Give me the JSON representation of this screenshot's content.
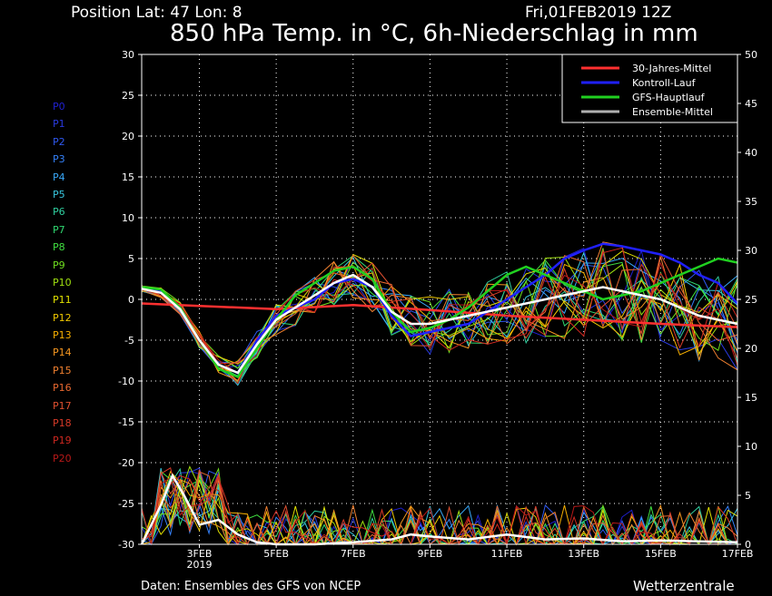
{
  "header": {
    "position": "Position   Lat: 47 Lon: 8",
    "date": "Fri,01FEB2019 12Z",
    "title": "850 hPa Temp. in °C, 6h-Niederschlag in mm"
  },
  "footer": {
    "source": "Daten: Ensembles des GFS von NCEP",
    "brand": "Wetterzentrale"
  },
  "members": [
    {
      "label": "P0",
      "color": "#2020d0"
    },
    {
      "label": "P1",
      "color": "#2a3ae0"
    },
    {
      "label": "P2",
      "color": "#2f58f0"
    },
    {
      "label": "P3",
      "color": "#3480f8"
    },
    {
      "label": "P4",
      "color": "#38a8f8"
    },
    {
      "label": "P5",
      "color": "#38c8e0"
    },
    {
      "label": "P6",
      "color": "#30d0a0"
    },
    {
      "label": "P7",
      "color": "#30d870"
    },
    {
      "label": "P8",
      "color": "#40e040"
    },
    {
      "label": "P9",
      "color": "#70e020"
    },
    {
      "label": "P10",
      "color": "#a0e010"
    },
    {
      "label": "P11",
      "color": "#e0e000"
    },
    {
      "label": "P12",
      "color": "#f0c800"
    },
    {
      "label": "P13",
      "color": "#f8b000"
    },
    {
      "label": "P14",
      "color": "#f89820"
    },
    {
      "label": "P15",
      "color": "#f08030"
    },
    {
      "label": "P16",
      "color": "#e86830"
    },
    {
      "label": "P17",
      "color": "#e05030"
    },
    {
      "label": "P18",
      "color": "#d83a28"
    },
    {
      "label": "P19",
      "color": "#d02820"
    },
    {
      "label": "P20",
      "color": "#b81818"
    }
  ],
  "chart_data": {
    "type": "line",
    "x_unit": "days",
    "x_start": "2019-02-01 12Z",
    "xlim": [
      1.5,
      17.0
    ],
    "x_ticks": [
      {
        "day": 3,
        "label": "3FEB",
        "sublabel": "2019"
      },
      {
        "day": 5,
        "label": "5FEB"
      },
      {
        "day": 7,
        "label": "7FEB"
      },
      {
        "day": 9,
        "label": "9FEB"
      },
      {
        "day": 11,
        "label": "11FEB"
      },
      {
        "day": 13,
        "label": "13FEB"
      },
      {
        "day": 15,
        "label": "15FEB"
      },
      {
        "day": 17,
        "label": "17FEB"
      }
    ],
    "y_left": {
      "unit": "°C",
      "lim": [
        -30,
        30
      ],
      "ticks": [
        30,
        25,
        20,
        15,
        10,
        5,
        0,
        -5,
        -10,
        -15,
        -20,
        -25,
        -30
      ]
    },
    "y_right": {
      "unit": "mm",
      "lim": [
        0,
        50
      ],
      "ticks": [
        50,
        45,
        40,
        35,
        30,
        25,
        20,
        15,
        10,
        5,
        0
      ]
    },
    "legend": {
      "placement": "top-right",
      "entries": [
        {
          "name": "30-Jahres-Mittel",
          "color": "#ff3030"
        },
        {
          "name": "Kontroll-Lauf",
          "color": "#2020ff"
        },
        {
          "name": "GFS-Hauptlauf",
          "color": "#20d020"
        },
        {
          "name": "Ensemble-Mittel",
          "color": "#b0b0b0"
        }
      ]
    },
    "series": [
      {
        "name": "30-Jahres-Mittel",
        "color": "#ff3030",
        "axis": "left",
        "x": [
          1.5,
          3,
          5,
          7,
          9,
          11,
          13,
          15,
          17
        ],
        "y": [
          -0.5,
          -0.8,
          -1.2,
          -0.7,
          -1.3,
          -2.0,
          -2.5,
          -3.0,
          -3.4
        ]
      },
      {
        "name": "Kontroll-Lauf",
        "color": "#2020ff",
        "axis": "left",
        "x": [
          1.5,
          2,
          2.5,
          3,
          3.5,
          4,
          4.5,
          5,
          5.5,
          6,
          6.5,
          7,
          7.5,
          8,
          8.5,
          9,
          9.5,
          10,
          10.5,
          11,
          11.5,
          12,
          12.5,
          13,
          13.5,
          14,
          14.5,
          15,
          15.5,
          16,
          16.5,
          17
        ],
        "y": [
          1.5,
          1.0,
          -1.0,
          -5.0,
          -8.0,
          -9.0,
          -5.0,
          -2.0,
          -1.0,
          0.0,
          2.0,
          2.5,
          1.5,
          -2.0,
          -4.5,
          -4.0,
          -3.5,
          -3.0,
          -1.5,
          0.0,
          1.5,
          3.0,
          5.0,
          6.0,
          6.8,
          6.5,
          6.0,
          5.5,
          4.5,
          3.0,
          2.0,
          -0.5
        ]
      },
      {
        "name": "GFS-Hauptlauf",
        "color": "#20d020",
        "axis": "left",
        "x": [
          1.5,
          2,
          2.5,
          3,
          3.5,
          4,
          4.5,
          5,
          5.5,
          6,
          6.5,
          7,
          7.5,
          8,
          8.5,
          9,
          9.5,
          10,
          10.5,
          11,
          11.5,
          12,
          12.5,
          13,
          13.5,
          14,
          14.5,
          15,
          15.5,
          16,
          16.5,
          17
        ],
        "y": [
          1.5,
          1.2,
          -1.0,
          -5.0,
          -8.5,
          -9.5,
          -6.0,
          -2.5,
          0.5,
          2.0,
          3.5,
          4.0,
          2.5,
          -1.5,
          -4.0,
          -3.5,
          -2.5,
          -1.0,
          1.0,
          3.0,
          4.0,
          3.0,
          2.0,
          1.0,
          0.0,
          0.5,
          1.0,
          2.0,
          3.0,
          4.0,
          5.0,
          4.5
        ]
      },
      {
        "name": "Ensemble-Mittel",
        "color": "#ffffff",
        "axis": "left",
        "x": [
          1.5,
          2,
          2.5,
          3,
          3.5,
          4,
          4.5,
          5,
          5.5,
          6,
          6.5,
          7,
          7.5,
          8,
          8.5,
          9,
          9.5,
          10,
          10.5,
          11,
          11.5,
          12,
          12.5,
          13,
          13.5,
          14,
          14.5,
          15,
          15.5,
          16,
          16.5,
          17
        ],
        "y": [
          1.3,
          0.8,
          -1.2,
          -5.0,
          -8.0,
          -9.0,
          -5.5,
          -2.5,
          -1.0,
          0.5,
          2.0,
          3.0,
          1.5,
          -1.5,
          -3.0,
          -3.0,
          -2.5,
          -2.0,
          -1.5,
          -1.0,
          -0.5,
          0.0,
          0.5,
          1.0,
          1.5,
          1.0,
          0.5,
          0.0,
          -1.0,
          -2.0,
          -2.5,
          -3.0
        ]
      },
      {
        "name": "Ensemble-Mittel Niederschlag",
        "color": "#ffffff",
        "axis": "right",
        "x": [
          1.5,
          2,
          2.3,
          2.6,
          3,
          3.5,
          4,
          4.5,
          5,
          6,
          7,
          8,
          8.5,
          9,
          10,
          11,
          12,
          13,
          14,
          15,
          16,
          17
        ],
        "y": [
          0,
          4,
          7,
          5,
          2,
          2.5,
          1,
          0.2,
          0,
          0,
          0.2,
          0.5,
          1,
          0.8,
          0.5,
          1,
          0.5,
          0.6,
          0.3,
          0.4,
          0.3,
          0.2
        ]
      }
    ]
  }
}
